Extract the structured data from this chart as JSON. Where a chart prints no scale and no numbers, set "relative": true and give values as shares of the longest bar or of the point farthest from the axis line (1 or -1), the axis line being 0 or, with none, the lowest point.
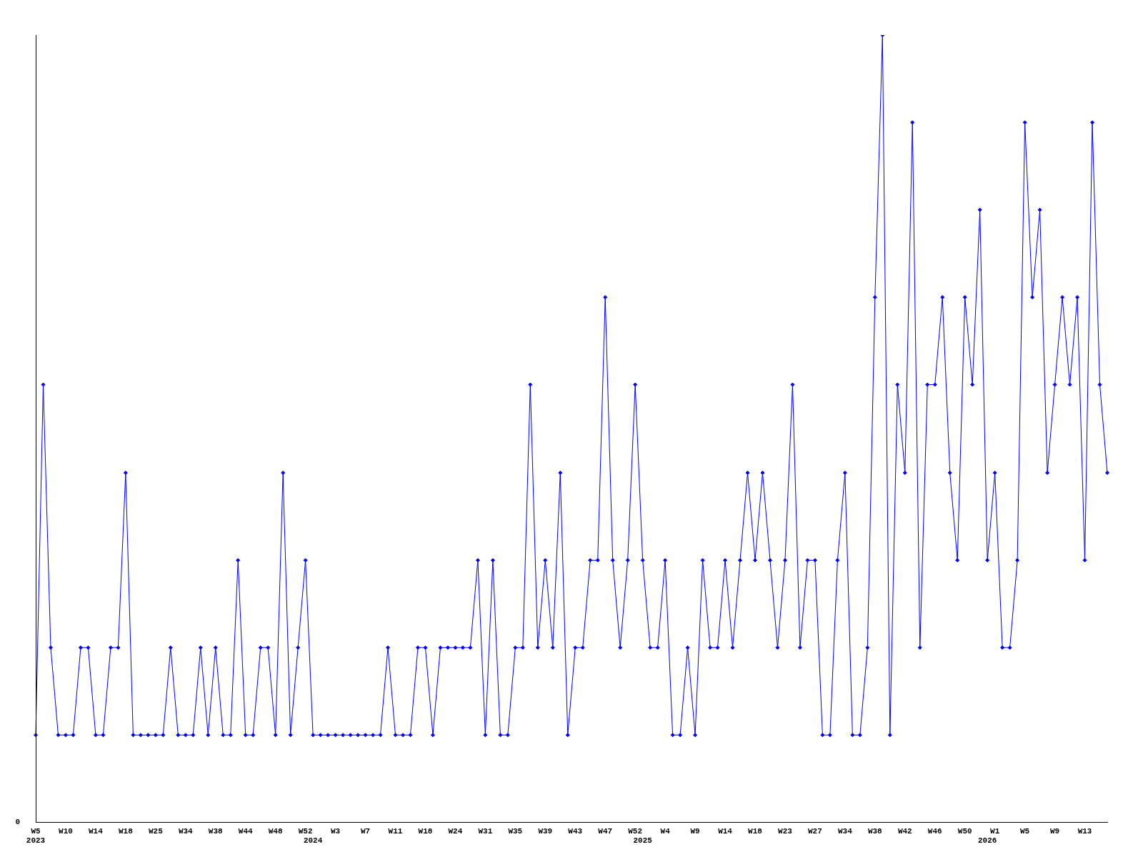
{
  "chart_data": {
    "type": "line",
    "relative": true,
    "color": "#0000ff",
    "marker": "diamond",
    "annotations": [
      "0"
    ],
    "categories": [
      "W5\n2023",
      null,
      null,
      null,
      "W10",
      null,
      null,
      null,
      "W14",
      null,
      null,
      null,
      "W18",
      null,
      null,
      null,
      "W25",
      null,
      null,
      null,
      "W34",
      null,
      null,
      null,
      "W38",
      null,
      null,
      null,
      "W44",
      null,
      null,
      null,
      "W48",
      null,
      null,
      null,
      "W52",
      "\n2024",
      null,
      null,
      "W3",
      null,
      null,
      null,
      "W7",
      null,
      null,
      null,
      "W11",
      null,
      null,
      null,
      "W18",
      null,
      null,
      null,
      "W24",
      null,
      null,
      null,
      "W31",
      null,
      null,
      null,
      "W35",
      null,
      null,
      null,
      "W39",
      null,
      null,
      null,
      "W43",
      null,
      null,
      null,
      "W47",
      null,
      null,
      null,
      "W52",
      "\n2025",
      null,
      null,
      "W4",
      null,
      null,
      null,
      "W9",
      null,
      null,
      null,
      "W14",
      null,
      null,
      null,
      "W18",
      null,
      null,
      null,
      "W23",
      null,
      null,
      null,
      "W27",
      null,
      null,
      null,
      "W34",
      null,
      null,
      null,
      "W38",
      null,
      null,
      null,
      "W42",
      null,
      null,
      null,
      "W46",
      null,
      null,
      null,
      "W50",
      null,
      null,
      "\n2026",
      "W1",
      null,
      null,
      null,
      "W5",
      null,
      null,
      null,
      "W9",
      null,
      null,
      null,
      "W13",
      null,
      null,
      null
    ],
    "values": [
      0.111,
      0.556,
      0.222,
      0.111,
      0.111,
      0.111,
      0.222,
      0.222,
      0.111,
      0.111,
      0.222,
      0.222,
      0.444,
      0.111,
      0.111,
      0.111,
      0.111,
      0.111,
      0.222,
      0.111,
      0.111,
      0.111,
      0.222,
      0.111,
      0.222,
      0.111,
      0.111,
      0.333,
      0.111,
      0.111,
      0.222,
      0.222,
      0.111,
      0.444,
      0.111,
      0.222,
      0.333,
      0.111,
      0.111,
      0.111,
      0.111,
      0.111,
      0.111,
      0.111,
      0.111,
      0.111,
      0.111,
      0.222,
      0.111,
      0.111,
      0.111,
      0.222,
      0.222,
      0.111,
      0.222,
      0.222,
      0.222,
      0.222,
      0.222,
      0.333,
      0.111,
      0.333,
      0.111,
      0.111,
      0.222,
      0.222,
      0.556,
      0.222,
      0.333,
      0.222,
      0.444,
      0.111,
      0.222,
      0.222,
      0.333,
      0.333,
      0.667,
      0.333,
      0.222,
      0.333,
      0.556,
      0.333,
      0.222,
      0.222,
      0.333,
      0.111,
      0.111,
      0.222,
      0.111,
      0.333,
      0.222,
      0.222,
      0.333,
      0.222,
      0.333,
      0.444,
      0.333,
      0.444,
      0.333,
      0.222,
      0.333,
      0.556,
      0.222,
      0.333,
      0.333,
      0.111,
      0.111,
      0.333,
      0.444,
      0.111,
      0.111,
      0.222,
      0.667,
      1,
      0.111,
      0.556,
      0.444,
      0.889,
      0.222,
      0.556,
      0.556,
      0.667,
      0.444,
      0.333,
      0.667,
      0.556,
      0.778,
      0.333,
      0.444,
      0.222,
      0.222,
      0.333,
      0.889,
      0.667,
      0.778,
      0.444,
      0.556,
      0.667,
      0.556,
      0.667,
      0.333,
      0.889,
      0.556,
      0.444
    ]
  }
}
